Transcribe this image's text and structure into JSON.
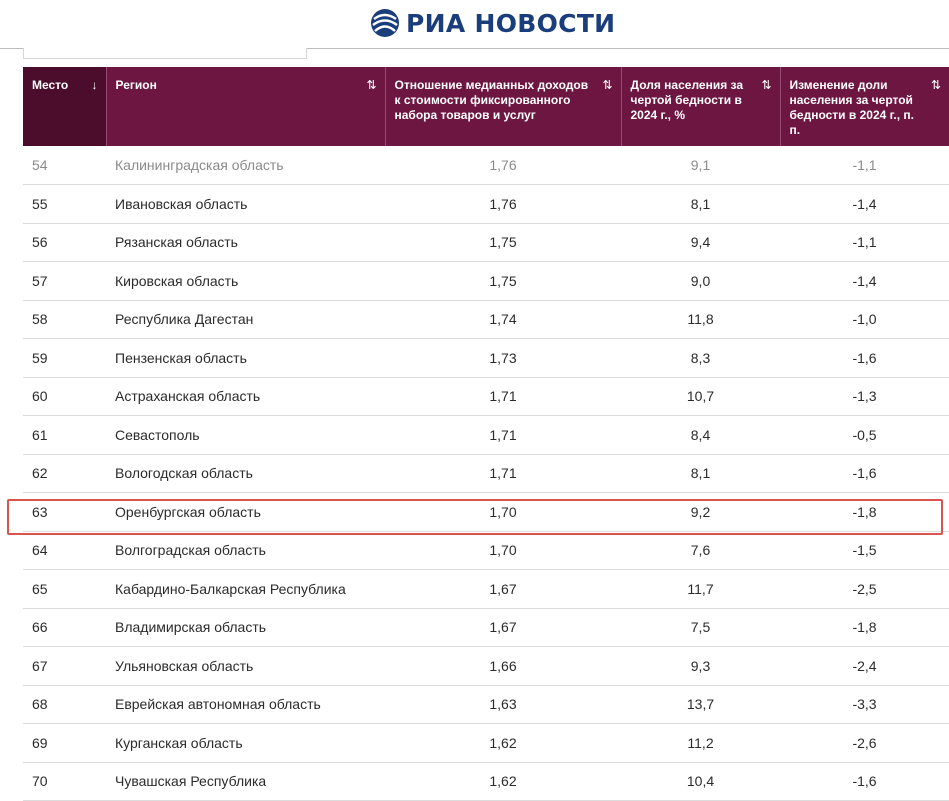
{
  "header": {
    "logo_text": "РИА НОВОСТИ",
    "logo_color": "#1a3d7c"
  },
  "table": {
    "header_color": "#6e1642",
    "columns": [
      {
        "label": "Место",
        "sort_icon": "↓"
      },
      {
        "label": "Регион",
        "sort_icon": "⇅"
      },
      {
        "label": "Отношение медианных доходов к стоимости фиксированного набора товаров и услуг",
        "sort_icon": "⇅"
      },
      {
        "label": "Доля населения за чертой бедности в 2024 г., %",
        "sort_icon": "⇅"
      },
      {
        "label": "Изменение доли населения за чертой бедности в 2024 г., п. п.",
        "sort_icon": "⇅"
      }
    ],
    "rows": [
      [
        "54",
        "Калининградская область",
        "1,76",
        "9,1",
        "-1,1"
      ],
      [
        "55",
        "Ивановская область",
        "1,76",
        "8,1",
        "-1,4"
      ],
      [
        "56",
        "Рязанская область",
        "1,75",
        "9,4",
        "-1,1"
      ],
      [
        "57",
        "Кировская область",
        "1,75",
        "9,0",
        "-1,4"
      ],
      [
        "58",
        "Республика Дагестан",
        "1,74",
        "11,8",
        "-1,0"
      ],
      [
        "59",
        "Пензенская область",
        "1,73",
        "8,3",
        "-1,6"
      ],
      [
        "60",
        "Астраханская область",
        "1,71",
        "10,7",
        "-1,3"
      ],
      [
        "61",
        "Севастополь",
        "1,71",
        "8,4",
        "-0,5"
      ],
      [
        "62",
        "Вологодская область",
        "1,71",
        "8,1",
        "-1,6"
      ],
      [
        "63",
        "Оренбургская область",
        "1,70",
        "9,2",
        "-1,8"
      ],
      [
        "64",
        "Волгоградская область",
        "1,70",
        "7,6",
        "-1,5"
      ],
      [
        "65",
        "Кабардино-Балкарская Республика",
        "1,67",
        "11,7",
        "-2,5"
      ],
      [
        "66",
        "Владимирская область",
        "1,67",
        "7,5",
        "-1,8"
      ],
      [
        "67",
        "Ульяновская область",
        "1,66",
        "9,3",
        "-2,4"
      ],
      [
        "68",
        "Еврейская автономная область",
        "1,63",
        "13,7",
        "-3,3"
      ],
      [
        "69",
        "Курганская область",
        "1,62",
        "11,2",
        "-2,6"
      ],
      [
        "70",
        "Чувашская Республика",
        "1,62",
        "10,4",
        "-1,6"
      ]
    ],
    "highlighted_rank": "63",
    "highlight_color": "#d9534f"
  }
}
